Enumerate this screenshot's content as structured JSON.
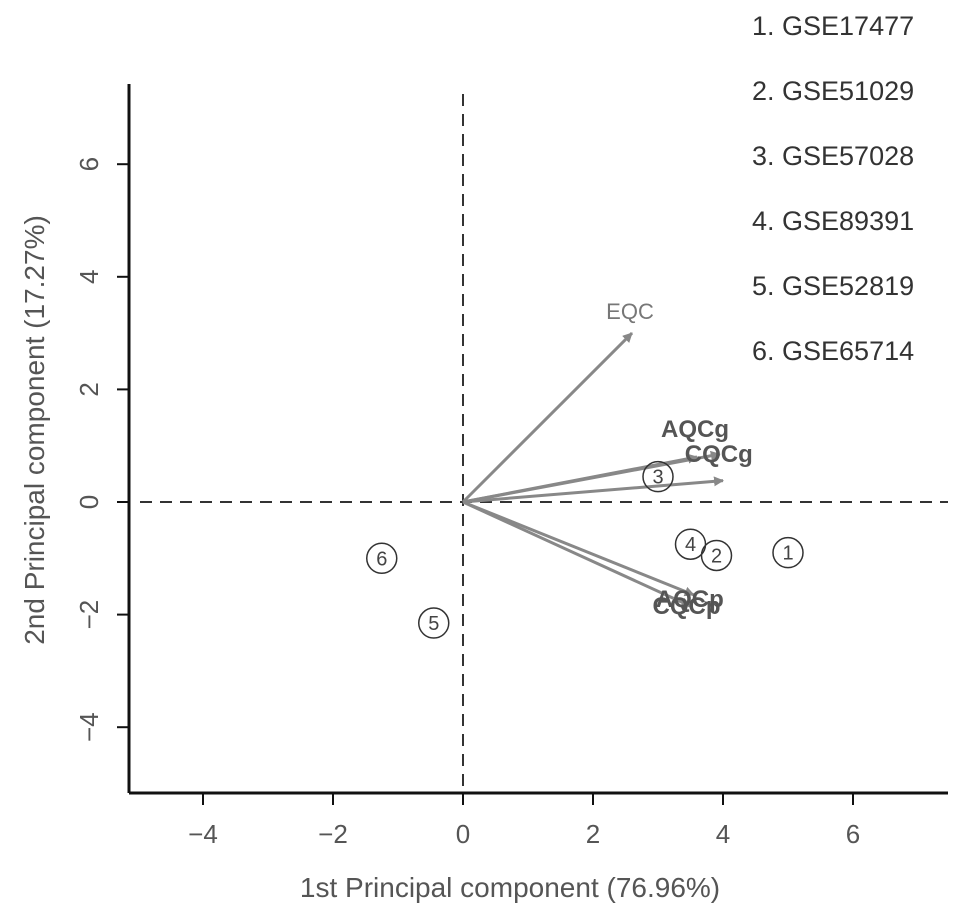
{
  "chart_data": {
    "type": "scatter",
    "title": "",
    "xlabel": "1st Principal component (76.96%)",
    "ylabel": "2nd Principal component (17.27%)",
    "xlim": [
      -5.15,
      7.4
    ],
    "ylim": [
      -5.15,
      7.4
    ],
    "xticks": [
      -4,
      -2,
      0,
      2,
      4,
      6
    ],
    "yticks": [
      -4,
      -2,
      0,
      2,
      4,
      6
    ],
    "xtick_labels": [
      "−4",
      "−2",
      "0",
      "2",
      "4",
      "6"
    ],
    "ytick_labels": [
      "−4",
      "−2",
      "0",
      "2",
      "4",
      "6"
    ],
    "reference_lines": {
      "x": 0,
      "y": 0,
      "style": "dashed"
    },
    "grid": false,
    "legend_placement": "top-right",
    "points": [
      {
        "label": "1",
        "x": 5.0,
        "y": -0.9
      },
      {
        "label": "2",
        "x": 3.9,
        "y": -0.95
      },
      {
        "label": "3",
        "x": 3.0,
        "y": 0.45
      },
      {
        "label": "4",
        "x": 3.5,
        "y": -0.75
      },
      {
        "label": "5",
        "x": -0.45,
        "y": -2.15
      },
      {
        "label": "6",
        "x": -1.25,
        "y": -1.0
      }
    ],
    "legend": [
      "1. GSE17477",
      "2. GSE51029",
      "3. GSE57028",
      "4. GSE89391",
      "5. GSE52819",
      "6. GSE65714"
    ],
    "vectors": [
      {
        "label": "EQC",
        "x": 2.6,
        "y": 3.0,
        "style": "light"
      },
      {
        "label": "AQCg",
        "x": 3.6,
        "y": 0.8,
        "style": "bold"
      },
      {
        "label": "CQCg",
        "x": 3.95,
        "y": 0.85,
        "style": "bold"
      },
      {
        "label": "",
        "x": 4.0,
        "y": 0.38,
        "style": "none"
      },
      {
        "label": "AQCp",
        "x": 3.55,
        "y": -1.65,
        "style": "bold"
      },
      {
        "label": "CQCp",
        "x": 3.5,
        "y": -1.85,
        "style": "bold"
      }
    ],
    "colors": {
      "axis": "#111111",
      "arrow": "#888888",
      "text": "#555555"
    }
  }
}
